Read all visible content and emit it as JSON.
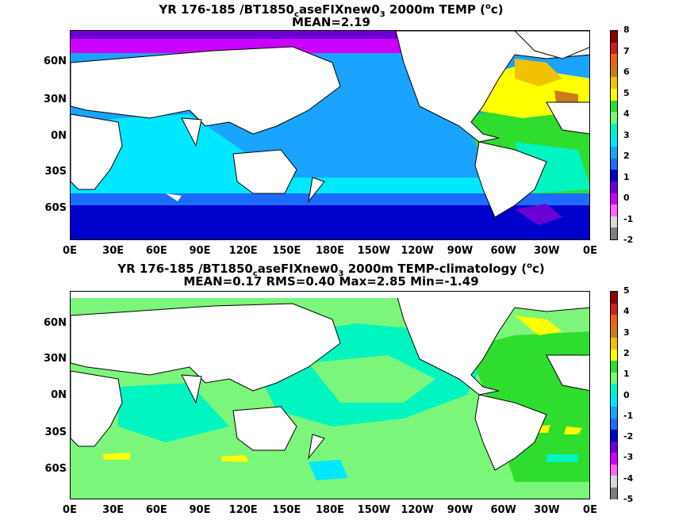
{
  "panel1": {
    "title_line1": {
      "pre": "YR 176-185 /BT1850",
      "sub1": "c",
      "mid": "aseFIXnew0",
      "sub2": "3",
      "post": " 2000m TEMP (",
      "sup": "o",
      "end": "c)"
    },
    "title_line2": "MEAN=2.19",
    "colorbar": {
      "labels": [
        "8",
        "7",
        "6",
        "5",
        "4",
        "3",
        "2",
        "1",
        "0",
        "-1",
        "-2"
      ],
      "colors": [
        "#8b0000",
        "#cc1f1f",
        "#e8651e",
        "#cc7a1a",
        "#f2c200",
        "#ffff00",
        "#2edd2e",
        "#7bf67b",
        "#00f5c0",
        "#00e8ff",
        "#1aa3ff",
        "#1e6bff",
        "#0000cc",
        "#6a00d4",
        "#cc00ff",
        "#ff66ff",
        "#d9d9d9",
        "#7f7f7f"
      ]
    }
  },
  "panel2": {
    "title_line1": {
      "pre": "YR 176-185 /BT1850",
      "sub1": "c",
      "mid": "aseFIXnew0",
      "sub2": "3",
      "post": " 2000m TEMP-climatology (",
      "sup": "o",
      "end": "c)"
    },
    "title_line2": "MEAN=0.17   RMS=0.40   Max=2.85   Min=-1.49",
    "colorbar": {
      "labels": [
        "5",
        "4",
        "3",
        "2",
        "1",
        "0",
        "-1",
        "-2",
        "-3",
        "-4",
        "-5"
      ],
      "colors": [
        "#8b0000",
        "#cc1f1f",
        "#e8651e",
        "#cc7a1a",
        "#f2c200",
        "#ffff00",
        "#2edd2e",
        "#7bf67b",
        "#00f5c0",
        "#00e8ff",
        "#1aa3ff",
        "#1e6bff",
        "#0000cc",
        "#6a00d4",
        "#cc00ff",
        "#ff66ff",
        "#d9d9d9",
        "#7f7f7f"
      ]
    }
  },
  "lat_labels": [
    "60N",
    "30N",
    "0N",
    "30S",
    "60S"
  ],
  "lon_labels": [
    "0E",
    "30E",
    "60E",
    "90E",
    "120E",
    "150E",
    "180E",
    "150W",
    "120W",
    "90W",
    "60W",
    "30W",
    "0E"
  ]
}
